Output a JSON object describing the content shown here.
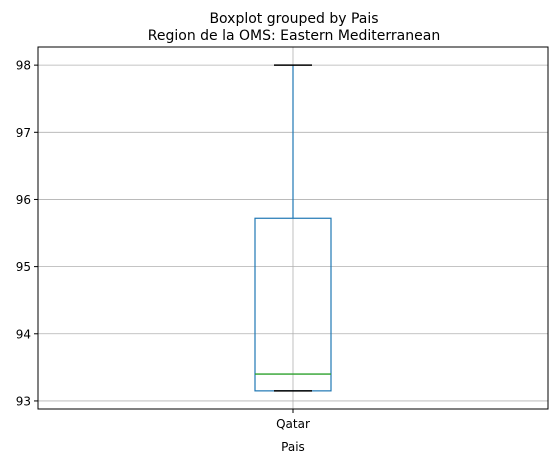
{
  "chart_data": {
    "type": "boxplot",
    "suptitle": "Boxplot grouped by Pais",
    "title": "Region de la OMS: Eastern Mediterranean",
    "xlabel": "Pais",
    "ylabel": "",
    "categories": [
      "Qatar"
    ],
    "boxes": [
      {
        "category": "Qatar",
        "whisker_low": 93.15,
        "q1": 93.15,
        "median": 93.4,
        "q3": 95.72,
        "whisker_high": 98.0
      }
    ],
    "y_ticks": [
      93,
      94,
      95,
      96,
      97,
      98
    ],
    "ylim": [
      92.88,
      98.27
    ],
    "grid": true,
    "colors": {
      "box": "#1f77b4",
      "median": "#2ca02c",
      "cap": "#000000",
      "grid": "#b0b0b0"
    }
  }
}
